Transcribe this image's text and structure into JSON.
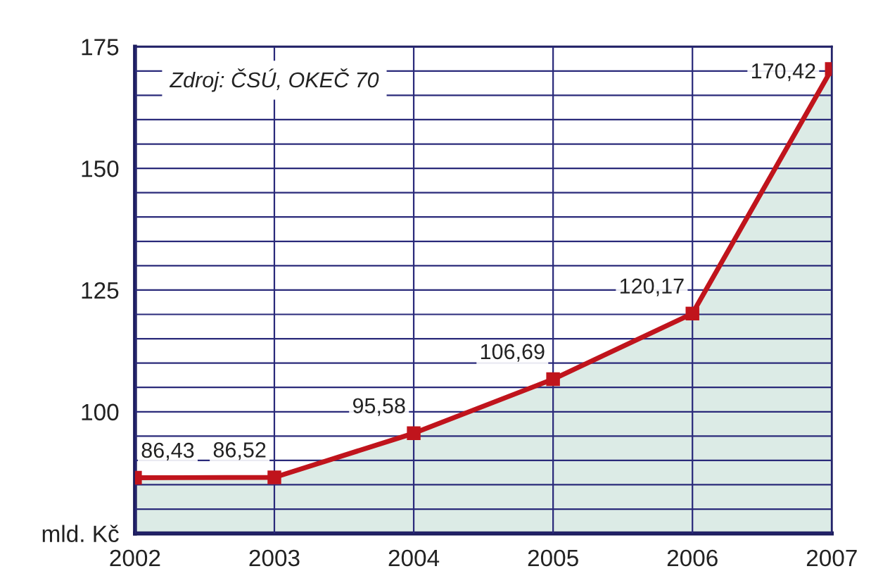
{
  "chart_data": {
    "type": "area",
    "x": [
      2002,
      2003,
      2004,
      2005,
      2006,
      2007
    ],
    "series": [
      {
        "color": "#c0141c",
        "values": [
          86.43,
          86.52,
          95.58,
          106.69,
          120.17,
          170.42
        ],
        "value_labels": [
          "86,43",
          "86,52",
          "95,58",
          "106,69",
          "120,17",
          "170,42"
        ]
      }
    ],
    "xlim": [
      2002,
      2007
    ],
    "xticks": [
      2002,
      2003,
      2004,
      2005,
      2006,
      2007
    ],
    "ylim": [
      75,
      175
    ],
    "yticks": [
      {
        "value": 75,
        "label": "mld. Kč"
      },
      {
        "value": 80,
        "label": null
      },
      {
        "value": 85,
        "label": null
      },
      {
        "value": 90,
        "label": null
      },
      {
        "value": 95,
        "label": null
      },
      100,
      {
        "value": 105,
        "label": null
      },
      {
        "value": 110,
        "label": null
      },
      {
        "value": 115,
        "label": null
      },
      {
        "value": 120,
        "label": null
      },
      125,
      {
        "value": 130,
        "label": null
      },
      {
        "value": 135,
        "label": null
      },
      {
        "value": 140,
        "label": null
      },
      {
        "value": 145,
        "label": null
      },
      150,
      {
        "value": 155,
        "label": null
      },
      {
        "value": 160,
        "label": null
      },
      {
        "value": 165,
        "label": null
      },
      {
        "value": 170,
        "label": null
      },
      175
    ],
    "annotations": [
      "Zdroj: ČSÚ, OKEČ 70"
    ],
    "grid": true,
    "marker": "square",
    "line_style": "solid",
    "legend": false
  }
}
